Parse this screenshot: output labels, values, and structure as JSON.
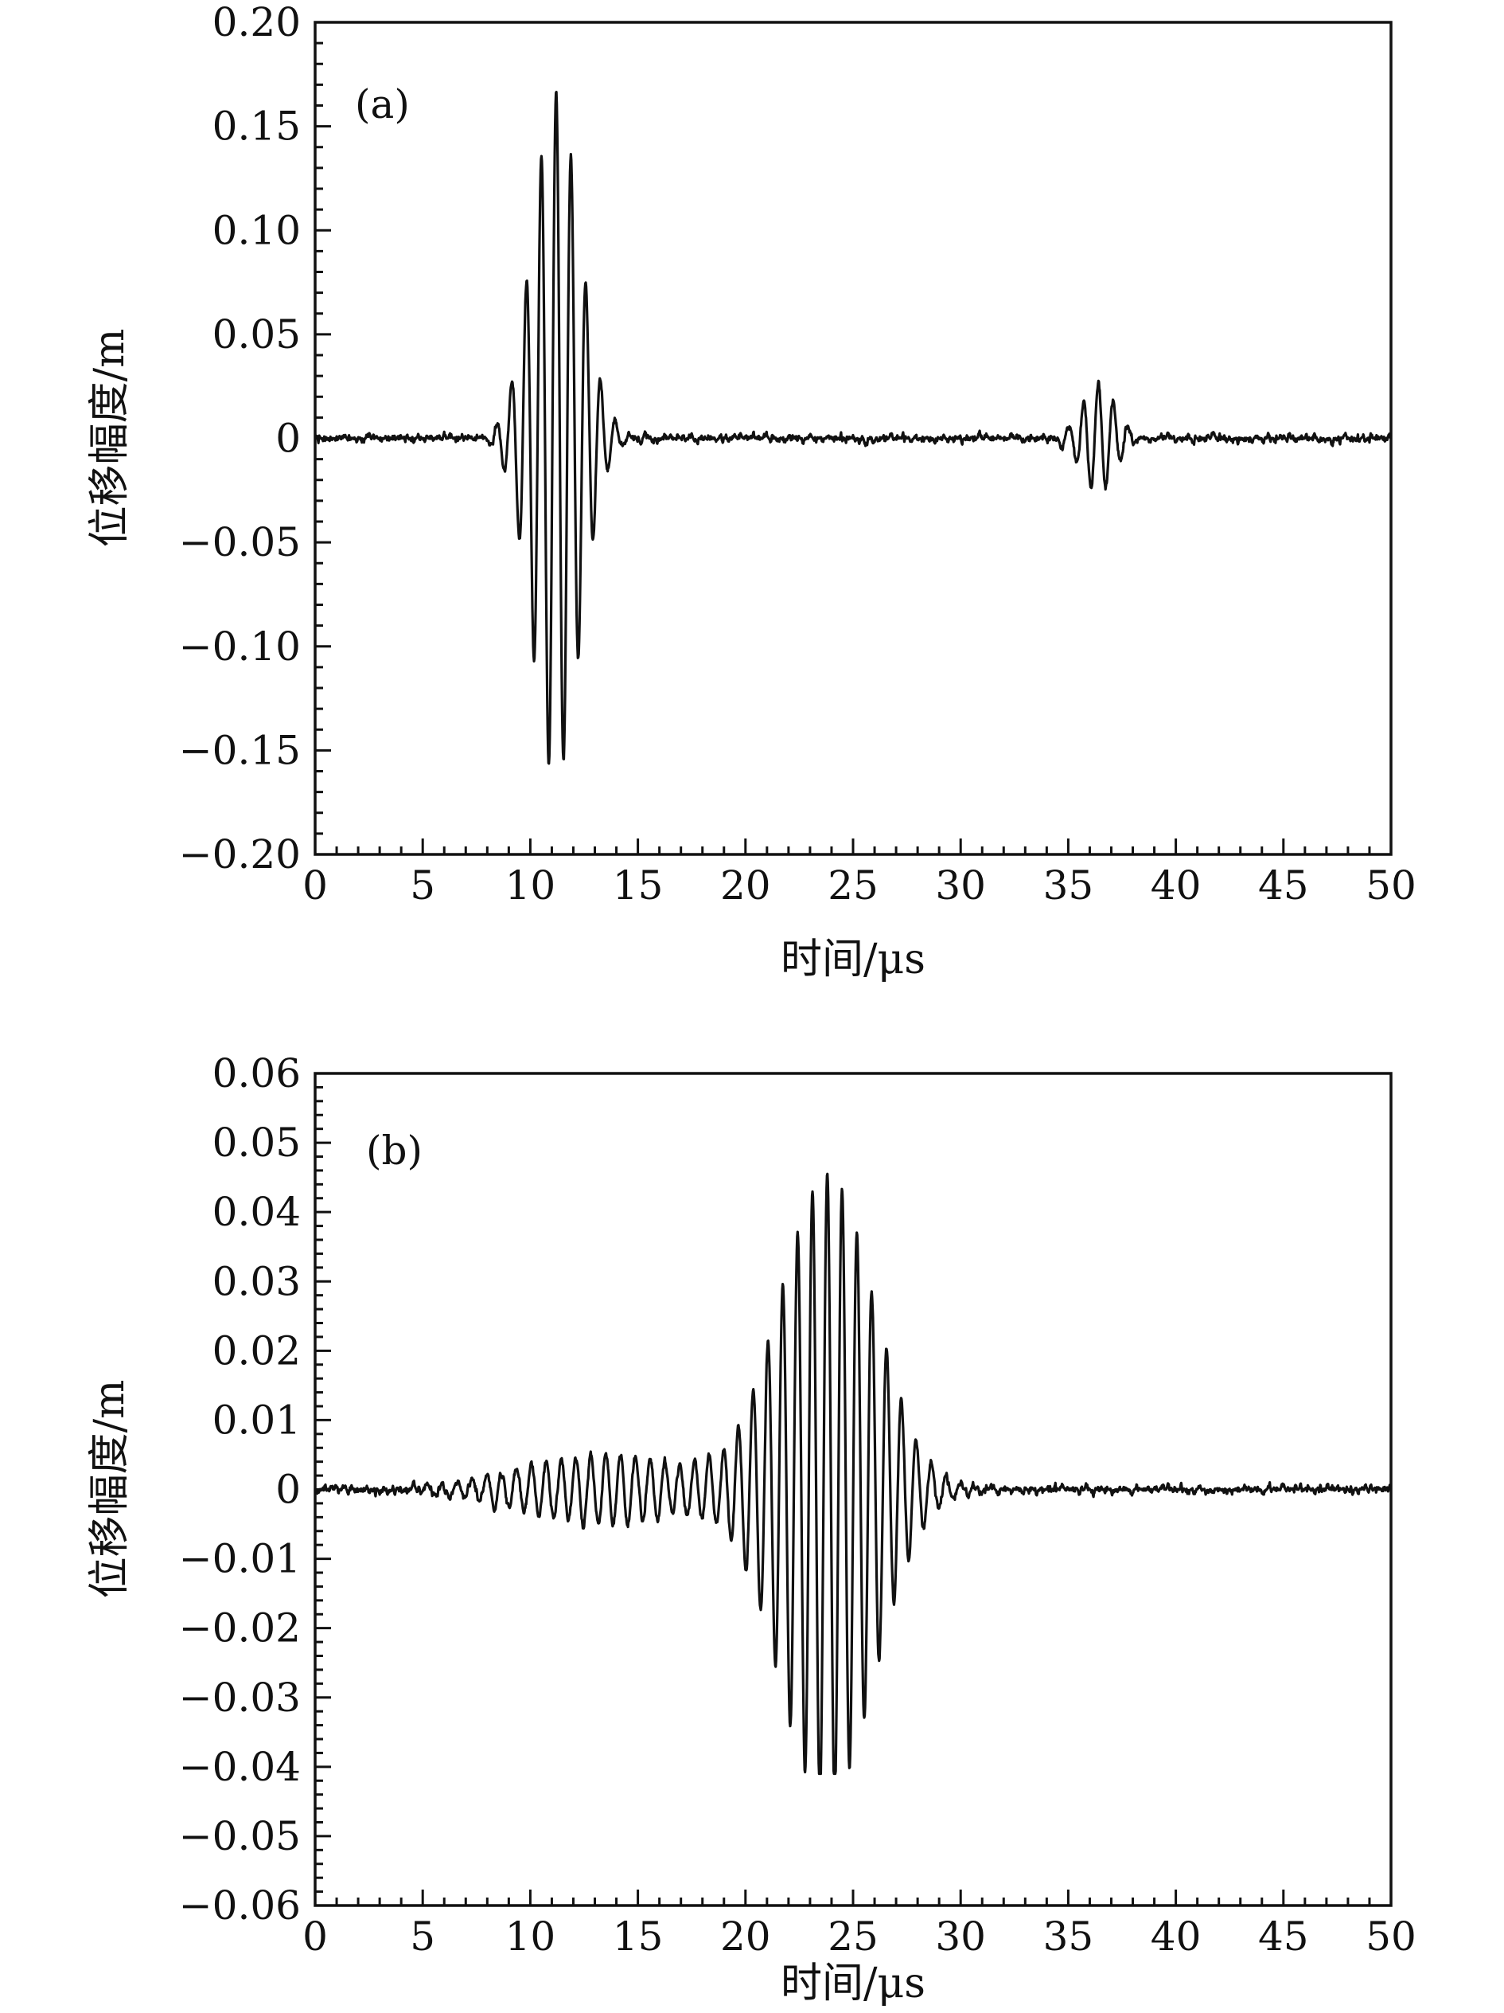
{
  "chart_data": [
    {
      "type": "line",
      "panel_label": "(a)",
      "xlabel": "时间/μs",
      "ylabel": "位移幅度/m",
      "xlim": [
        0,
        50
      ],
      "ylim": [
        -0.2,
        0.2
      ],
      "xticks": [
        0,
        5,
        10,
        15,
        20,
        25,
        30,
        35,
        40,
        45,
        50
      ],
      "xtick_labels": [
        "0",
        "5",
        "10",
        "15",
        "20",
        "25",
        "30",
        "35",
        "40",
        "45",
        "50"
      ],
      "yticks": [
        0.2,
        0.15,
        0.1,
        0.05,
        0,
        -0.05,
        -0.1,
        -0.15,
        -0.2
      ],
      "ytick_labels": [
        "0.20",
        "0.15",
        "0.10",
        "0.05",
        "0",
        "−0.05",
        "−0.10",
        "−0.15",
        "−0.20"
      ],
      "grid": false,
      "series": [
        {
          "color": "#111111",
          "signal_model": "superposed Gaussian-windowed tone bursts with low-level noise",
          "bursts": [
            {
              "center_us": 11.2,
              "sigma_us": 1.1,
              "amplitude": 0.165,
              "frequency_mhz": 1.45
            },
            {
              "center_us": 36.4,
              "sigma_us": 0.8,
              "amplitude": 0.026,
              "frequency_mhz": 1.45
            }
          ],
          "noise_amplitude": 0.003,
          "peak_max": 0.167,
          "peak_min": -0.163
        }
      ]
    },
    {
      "type": "line",
      "panel_label": "(b)",
      "xlabel": "时间/μs",
      "ylabel": "位移幅度/m",
      "xlim": [
        0,
        50
      ],
      "ylim": [
        -0.06,
        0.06
      ],
      "xticks": [
        0,
        5,
        10,
        15,
        20,
        25,
        30,
        35,
        40,
        45,
        50
      ],
      "xtick_labels": [
        "0",
        "5",
        "10",
        "15",
        "20",
        "25",
        "30",
        "35",
        "40",
        "45",
        "50"
      ],
      "yticks": [
        0.06,
        0.05,
        0.04,
        0.03,
        0.02,
        0.01,
        0,
        -0.01,
        -0.02,
        -0.03,
        -0.04,
        -0.05,
        -0.06
      ],
      "ytick_labels": [
        "0.06",
        "0.05",
        "0.04",
        "0.03",
        "0.02",
        "0.01",
        "0",
        "−0.01",
        "−0.02",
        "−0.03",
        "−0.04",
        "−0.05",
        "−0.06"
      ],
      "grid": false,
      "series": [
        {
          "color": "#111111",
          "signal_model": "superposed Gaussian-windowed tone bursts with low-level noise",
          "bursts": [
            {
              "center_us": 23.8,
              "sigma_us": 2.2,
              "amplitude": 0.045,
              "frequency_mhz": 1.45
            },
            {
              "center_us": 13.5,
              "sigma_us": 4.0,
              "amplitude": 0.005,
              "frequency_mhz": 1.45
            }
          ],
          "noise_amplitude": 0.0009,
          "peak_max": 0.05,
          "peak_min": -0.041
        }
      ]
    }
  ]
}
